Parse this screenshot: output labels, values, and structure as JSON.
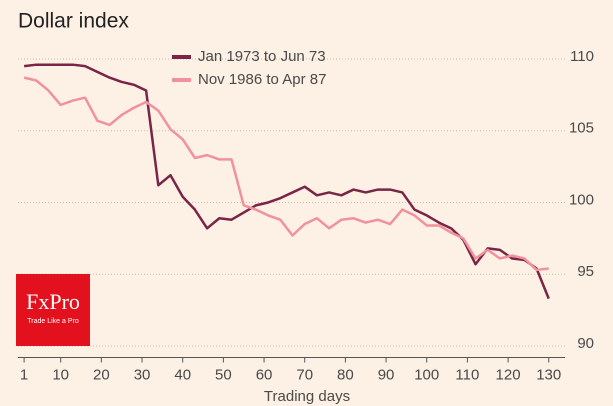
{
  "chart_data": {
    "type": "line",
    "title": "Dollar index",
    "xlabel": "Trading days",
    "x": [
      1,
      4,
      7,
      10,
      13,
      16,
      19,
      22,
      25,
      28,
      31,
      34,
      37,
      40,
      43,
      46,
      49,
      52,
      55,
      58,
      61,
      64,
      67,
      70,
      73,
      76,
      79,
      82,
      85,
      88,
      91,
      94,
      97,
      100,
      103,
      106,
      109,
      112,
      115,
      118,
      121,
      124,
      127,
      130
    ],
    "series": [
      {
        "name": "Jan 1973 to Jun 73",
        "color": "#7a2547",
        "values": [
          109.5,
          109.6,
          109.6,
          109.6,
          109.6,
          109.5,
          109.1,
          108.7,
          108.4,
          108.2,
          107.8,
          101.2,
          101.9,
          100.4,
          99.5,
          98.2,
          98.9,
          98.8,
          99.3,
          99.8,
          100.0,
          100.3,
          100.7,
          101.1,
          100.5,
          100.7,
          100.5,
          100.9,
          100.7,
          100.9,
          100.9,
          100.7,
          99.5,
          99.1,
          98.6,
          98.2,
          97.4,
          95.7,
          96.8,
          96.7,
          96.1,
          96.0,
          95.4,
          93.3
        ]
      },
      {
        "name": "Nov 1986 to Apr 87",
        "color": "#f2919e",
        "values": [
          108.7,
          108.5,
          107.8,
          106.8,
          107.1,
          107.3,
          105.7,
          105.4,
          106.1,
          106.6,
          107.0,
          106.4,
          105.1,
          104.4,
          103.1,
          103.3,
          103.0,
          103.0,
          99.8,
          99.5,
          99.1,
          98.8,
          97.7,
          98.5,
          98.9,
          98.2,
          98.8,
          98.9,
          98.6,
          98.8,
          98.5,
          99.5,
          99.1,
          98.4,
          98.4,
          97.9,
          97.5,
          96.1,
          96.7,
          96.1,
          96.3,
          96.1,
          95.3,
          95.4
        ]
      }
    ],
    "xlim": [
      -0.5,
      134
    ],
    "xticks": [
      1,
      10,
      20,
      30,
      40,
      50,
      60,
      70,
      80,
      90,
      100,
      110,
      120,
      130
    ],
    "ylim": [
      89.2,
      111
    ],
    "yticks": [
      90,
      95,
      100,
      105,
      110
    ],
    "grid": true
  },
  "logo": {
    "name": "FxPro",
    "tagline": "Trade Like a Pro"
  }
}
